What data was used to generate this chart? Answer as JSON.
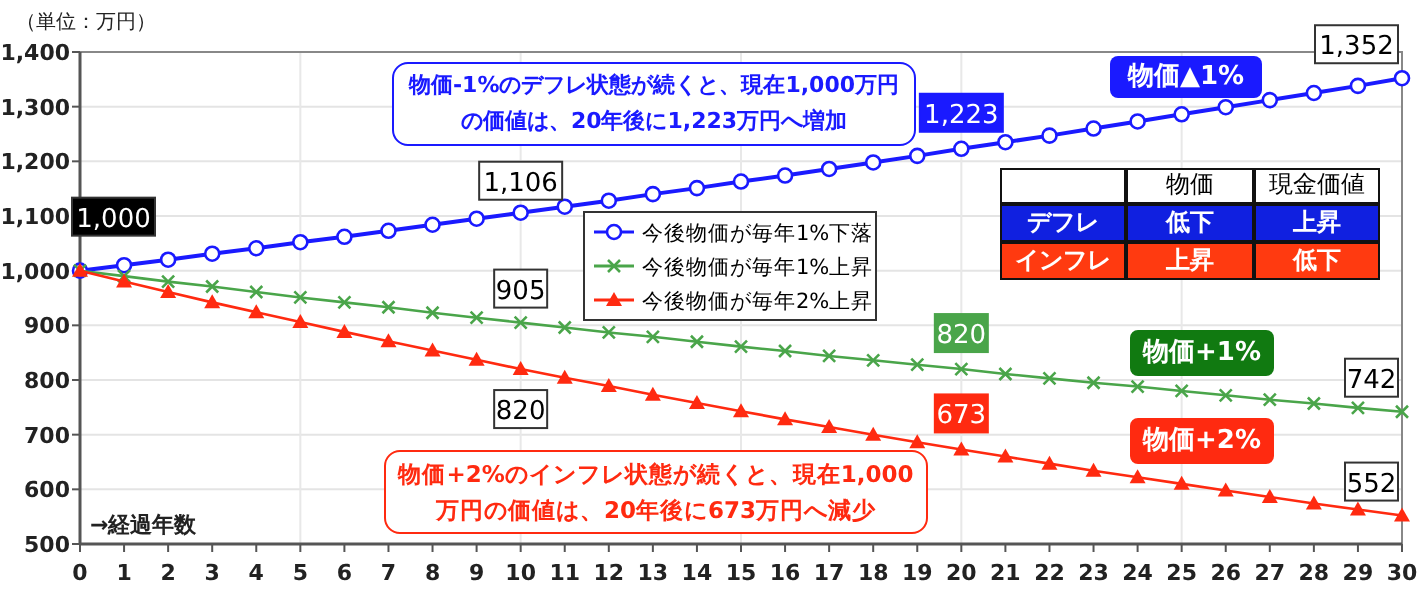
{
  "chart_data": {
    "type": "line",
    "ylabel": "（単位：万円）",
    "xlabel": "→経過年数",
    "x": [
      0,
      1,
      2,
      3,
      4,
      5,
      6,
      7,
      8,
      9,
      10,
      11,
      12,
      13,
      14,
      15,
      16,
      17,
      18,
      19,
      20,
      21,
      22,
      23,
      24,
      25,
      26,
      27,
      28,
      29,
      30
    ],
    "xlim": [
      0,
      30
    ],
    "xticks": [
      0,
      1,
      2,
      3,
      4,
      5,
      6,
      7,
      8,
      9,
      10,
      11,
      12,
      13,
      14,
      15,
      16,
      17,
      18,
      19,
      20,
      21,
      22,
      23,
      24,
      25,
      26,
      27,
      28,
      29,
      30
    ],
    "ylim": [
      500,
      1400
    ],
    "yticks": [
      {
        "value": 500,
        "label": "500"
      },
      {
        "value": 600,
        "label": "600"
      },
      {
        "value": 700,
        "label": "700"
      },
      {
        "value": 800,
        "label": "800"
      },
      {
        "value": 900,
        "label": "900"
      },
      {
        "value": 1000,
        "label": "1,000"
      },
      {
        "value": 1100,
        "label": "1,100"
      },
      {
        "value": 1200,
        "label": "1,200"
      },
      {
        "value": 1300,
        "label": "1,300"
      },
      {
        "value": 1400,
        "label": "1,400"
      }
    ],
    "grid": true,
    "legend": "center",
    "series": [
      {
        "name": "今後物価が毎年1%下落",
        "color": "#1a1aff",
        "marker": "circle",
        "values": [
          1000,
          1010,
          1020,
          1031,
          1041,
          1052,
          1062,
          1073,
          1084,
          1095,
          1106,
          1117,
          1128,
          1140,
          1151,
          1163,
          1174,
          1186,
          1198,
          1210,
          1223,
          1235,
          1247,
          1260,
          1273,
          1286,
          1299,
          1312,
          1325,
          1338,
          1352
        ],
        "value_labels": [
          "1,000",
          null,
          null,
          null,
          null,
          null,
          null,
          null,
          null,
          null,
          "1,106",
          null,
          null,
          null,
          null,
          null,
          null,
          null,
          null,
          null,
          "1,223",
          null,
          null,
          null,
          null,
          null,
          null,
          null,
          null,
          null,
          "1,352"
        ]
      },
      {
        "name": "今後物価が毎年1%上昇",
        "color": "#4aa54a",
        "marker": "cross",
        "values": [
          1000,
          990,
          980,
          971,
          961,
          951,
          942,
          933,
          923,
          914,
          905,
          896,
          887,
          879,
          870,
          861,
          853,
          844,
          836,
          828,
          820,
          811,
          803,
          795,
          788,
          780,
          772,
          764,
          757,
          749,
          742
        ],
        "value_labels": [
          null,
          null,
          null,
          null,
          null,
          null,
          null,
          null,
          null,
          null,
          "905",
          null,
          null,
          null,
          null,
          null,
          null,
          null,
          null,
          null,
          "820",
          null,
          null,
          null,
          null,
          null,
          null,
          null,
          null,
          null,
          "742"
        ]
      },
      {
        "name": "今後物価が毎年2%上昇",
        "color": "#ff2a10",
        "marker": "triangle",
        "values": [
          1000,
          980,
          961,
          942,
          924,
          906,
          888,
          871,
          854,
          837,
          820,
          804,
          789,
          773,
          758,
          743,
          728,
          714,
          700,
          686,
          673,
          660,
          647,
          634,
          622,
          610,
          598,
          586,
          574,
          563,
          552
        ],
        "value_labels": [
          null,
          null,
          null,
          null,
          null,
          null,
          null,
          null,
          null,
          null,
          "820",
          null,
          null,
          null,
          null,
          null,
          null,
          null,
          null,
          null,
          "673",
          null,
          null,
          null,
          null,
          null,
          null,
          null,
          null,
          null,
          "552"
        ]
      }
    ],
    "annotations": [
      "物価-1%のデフレ状態が続くと、現在1,000万円の価値は、20年後に1,223万円へ増加",
      "物価+2%のインフレ状態が続くと、現在1,000万円の価値は、20年後に673万円へ減少",
      "物価▲1%",
      "物価+1%",
      "物価+2%",
      "物価",
      "現金価値",
      "デフレ",
      "低下",
      "上昇",
      "インフレ",
      "上昇",
      "低下"
    ]
  }
}
